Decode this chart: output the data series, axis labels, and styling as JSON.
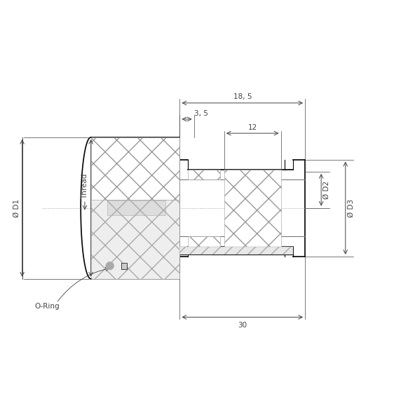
{
  "bg_color": "#ffffff",
  "line_color": "#000000",
  "hatch_color": "#555555",
  "dim_color": "#555555",
  "figsize": [
    5.82,
    5.82
  ],
  "dpi": 100,
  "labels": {
    "d1": "Ø D1",
    "d2": "Ø D2",
    "d3": "Ø D3",
    "thread": "Thread",
    "oring": "O-Ring",
    "dim_185": "18, 5",
    "dim_35": "3, 5",
    "dim_12": "12",
    "dim_30": "30"
  }
}
